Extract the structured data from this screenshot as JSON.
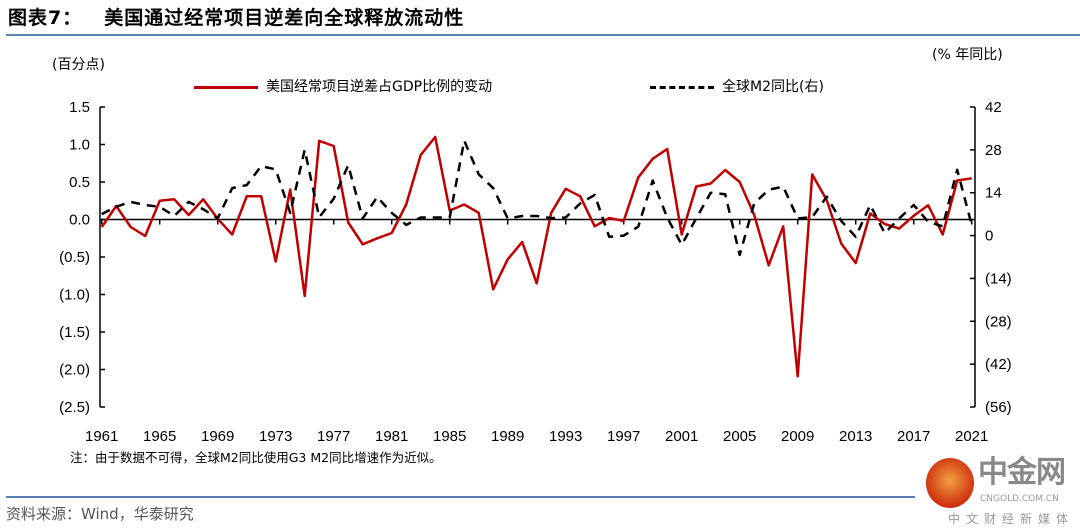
{
  "header": {
    "figure_no": "图表7：",
    "title": "美国通过经常项目逆差向全球释放流动性"
  },
  "footer": {
    "note": "注：由于数据不可得，全球M2同比使用G3 M2同比增速作为近似。",
    "source": "资料来源：Wind，华泰研究"
  },
  "watermark": {
    "brand": "中金网",
    "domain": "CNGOLD.COM.CN",
    "slogan": "中文财经新媒体"
  },
  "colors": {
    "red_series": "#c00000",
    "black_series": "#000000",
    "rule": "#5a7fb5"
  },
  "chart_data": {
    "type": "line",
    "title": "",
    "ylabel_left": "(百分点)",
    "ylabel_right": "(% 年同比)",
    "ylim_left": [
      -2.5,
      1.5
    ],
    "ylim_right": [
      -56,
      42
    ],
    "yticks_left": [
      {
        "v": 1.5,
        "t": "1.5"
      },
      {
        "v": 1.0,
        "t": "1.0"
      },
      {
        "v": 0.5,
        "t": "0.5"
      },
      {
        "v": 0,
        "t": "0.0"
      },
      {
        "v": -0.5,
        "t": "(0.5)"
      },
      {
        "v": -1.0,
        "t": "(1.0)"
      },
      {
        "v": -1.5,
        "t": "(1.5)"
      },
      {
        "v": -2.0,
        "t": "(2.0)"
      },
      {
        "v": -2.5,
        "t": "(2.5)"
      }
    ],
    "yticks_right": [
      {
        "v": 42,
        "t": "42"
      },
      {
        "v": 28,
        "t": "28"
      },
      {
        "v": 14,
        "t": "14"
      },
      {
        "v": 0,
        "t": "0"
      },
      {
        "v": -14,
        "t": "(14)"
      },
      {
        "v": -28,
        "t": "(28)"
      },
      {
        "v": -42,
        "t": "(42)"
      },
      {
        "v": -56,
        "t": "(56)"
      }
    ],
    "xticks": [
      "1961",
      "1965",
      "1969",
      "1973",
      "1977",
      "1981",
      "1985",
      "1989",
      "1993",
      "1997",
      "2001",
      "2005",
      "2009",
      "2013",
      "2017",
      "2021"
    ],
    "x_start": 1961,
    "legend_position": "top",
    "grid": false,
    "series": [
      {
        "name": "美国经常项目逆差占GDP比例的变动",
        "axis": "left",
        "style": "solid",
        "color": "#c00000",
        "values": [
          -0.1,
          0.18,
          -0.1,
          -0.22,
          0.25,
          0.27,
          0.06,
          0.27,
          0.01,
          -0.2,
          0.31,
          0.31,
          -0.56,
          0.4,
          -1.02,
          1.05,
          0.98,
          -0.04,
          -0.33,
          -0.25,
          -0.18,
          0.2,
          0.86,
          1.1,
          0.12,
          0.2,
          0.09,
          -0.93,
          -0.53,
          -0.3,
          -0.85,
          0.09,
          0.41,
          0.31,
          -0.09,
          0.02,
          -0.02,
          0.56,
          0.81,
          0.94,
          -0.2,
          0.44,
          0.48,
          0.66,
          0.5,
          0.06,
          -0.61,
          -0.09,
          -2.09,
          0.6,
          0.26,
          -0.32,
          -0.58,
          0.08,
          -0.06,
          -0.12,
          0.05,
          0.19,
          -0.2,
          0.52,
          0.55
        ]
      },
      {
        "name": "全球M2同比(右)",
        "axis": "right",
        "style": "dashed",
        "color": "#000000",
        "values": [
          7.0,
          9.4,
          11.0,
          10.0,
          9.4,
          6.4,
          11.0,
          8.6,
          5.6,
          15.5,
          16.5,
          22.7,
          21.6,
          7.4,
          28.0,
          6.0,
          12.0,
          23.0,
          5.6,
          12.6,
          7.4,
          3.5,
          5.9,
          5.9,
          5.9,
          31.0,
          20.0,
          15.5,
          5.6,
          6.4,
          6.4,
          5.7,
          5.9,
          10.5,
          13.3,
          -0.4,
          0.0,
          2.9,
          18.0,
          5.9,
          -3.0,
          5.6,
          14.0,
          13.5,
          -6.3,
          10.5,
          15.0,
          16.0,
          5.6,
          6.0,
          12.7,
          4.8,
          -0.4,
          10.0,
          0.8,
          5.6,
          10.0,
          4.5,
          3.0,
          21.5,
          3.5
        ]
      }
    ]
  }
}
